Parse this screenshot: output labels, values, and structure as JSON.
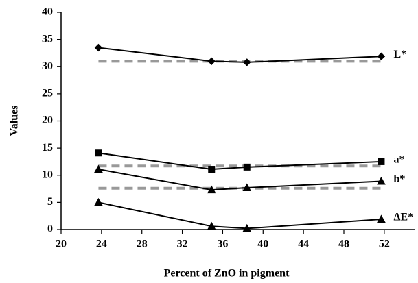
{
  "chart_data": {
    "type": "line",
    "x_label": "Percent of ZnO in pigment",
    "y_label": "Values",
    "xlim": [
      20,
      55
    ],
    "xticks": [
      20,
      24,
      28,
      32,
      36,
      40,
      44,
      48,
      52
    ],
    "ylim": [
      0,
      40
    ],
    "yticks": [
      0,
      5,
      10,
      15,
      20,
      25,
      30,
      35,
      40
    ],
    "x": [
      23.7,
      34.9,
      38.4,
      51.7
    ],
    "series": [
      {
        "name": "L*",
        "color": "#000000",
        "marker": "diamond",
        "values": [
          33.5,
          31.0,
          30.8,
          31.9
        ]
      },
      {
        "name": "a*",
        "color": "#000000",
        "marker": "square",
        "values": [
          14.1,
          11.1,
          11.5,
          12.5
        ]
      },
      {
        "name": "b*",
        "color": "#000000",
        "marker": "triangle",
        "values": [
          11.1,
          7.3,
          7.7,
          8.9
        ]
      },
      {
        "name": "ΔE*",
        "color": "#000000",
        "marker": "triangle",
        "values": [
          5.0,
          0.6,
          0.2,
          1.9
        ]
      }
    ],
    "reference_lines": [
      {
        "color": "#999999",
        "x": [
          23.7,
          51.7
        ],
        "values": [
          31,
          31
        ]
      },
      {
        "color": "#999999",
        "x": [
          23.7,
          51.7
        ],
        "values": [
          11.7,
          11.7
        ]
      },
      {
        "color": "#999999",
        "x": [
          23.7,
          51.7
        ],
        "values": [
          7.6,
          7.6
        ]
      }
    ]
  }
}
